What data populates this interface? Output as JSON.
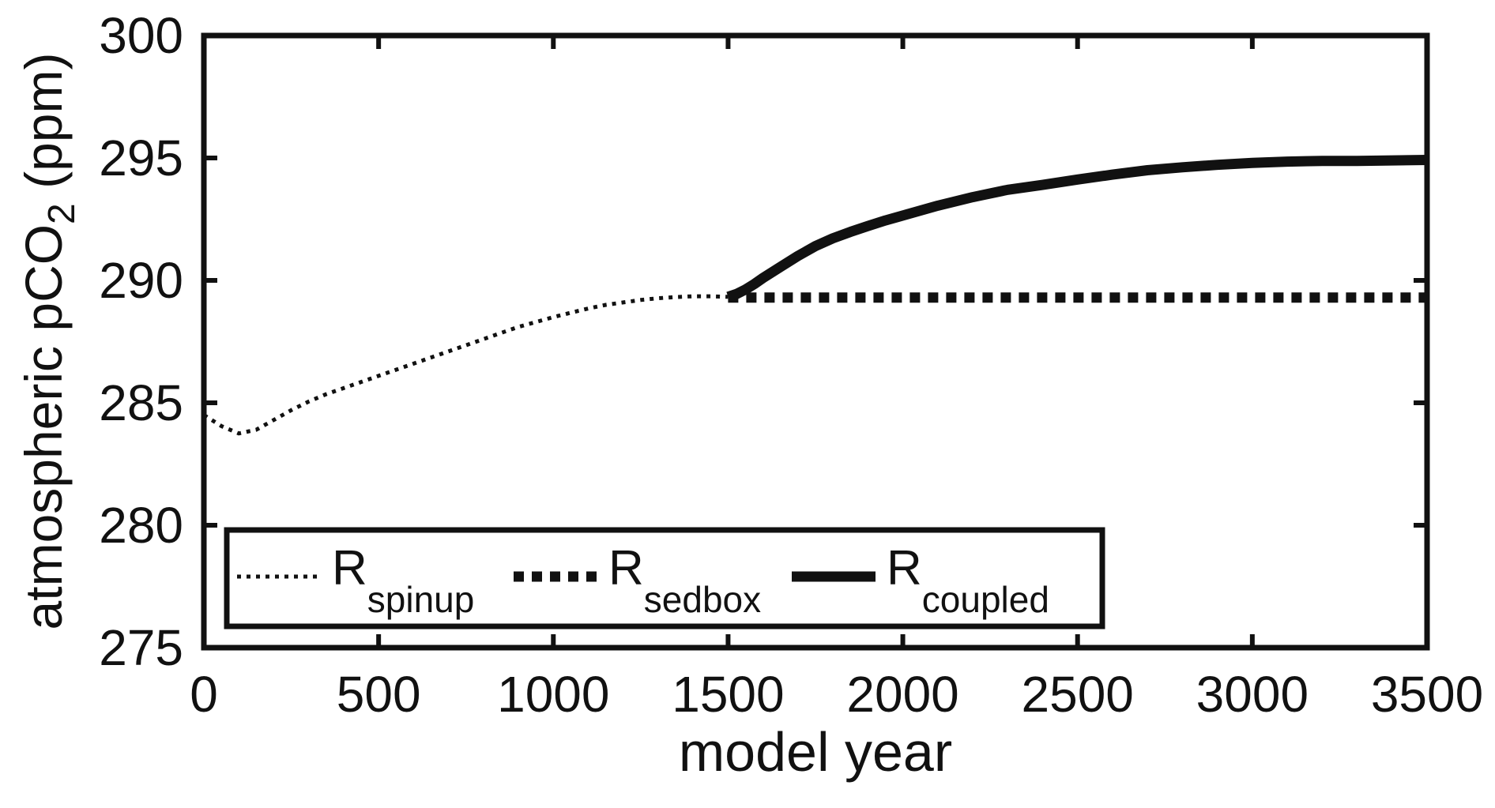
{
  "figure": {
    "background": "#ffffff",
    "ink_color": "#111111"
  },
  "chart_data": {
    "type": "line",
    "title": "",
    "xlabel": "model year",
    "ylabel_parts": [
      {
        "t": "atmospheric pCO"
      },
      {
        "t": "2"
      },
      {
        "t": " (ppm)"
      }
    ],
    "xlim": [
      0,
      3500
    ],
    "ylim": [
      275,
      300
    ],
    "xticks": [
      0,
      500,
      1000,
      1500,
      2000,
      2500,
      3000,
      3500
    ],
    "yticks": [
      275,
      280,
      285,
      290,
      295,
      300
    ],
    "grid": false,
    "box": true,
    "legend_position": "south-west-inside",
    "series": [
      {
        "name": "R_spinup",
        "label_base": "R",
        "label_sub": "spinup",
        "style": "dotted-thin",
        "color": "#111111",
        "x": [
          0,
          50,
          100,
          150,
          200,
          250,
          300,
          350,
          400,
          450,
          500,
          550,
          600,
          650,
          700,
          750,
          800,
          850,
          900,
          950,
          1000,
          1050,
          1100,
          1150,
          1200,
          1250,
          1300,
          1350,
          1400,
          1450,
          1500
        ],
        "y": [
          284.5,
          284.05,
          283.75,
          283.9,
          284.3,
          284.7,
          285.05,
          285.35,
          285.6,
          285.85,
          286.1,
          286.35,
          286.6,
          286.85,
          287.1,
          287.35,
          287.6,
          287.85,
          288.1,
          288.3,
          288.5,
          288.68,
          288.85,
          289.0,
          289.1,
          289.2,
          289.27,
          289.32,
          289.35,
          289.35,
          289.33
        ]
      },
      {
        "name": "R_sedbox",
        "label_base": "R",
        "label_sub": "sedbox",
        "style": "dotted-thick",
        "color": "#111111",
        "x": [
          1500,
          1750,
          2000,
          2250,
          2500,
          2750,
          3000,
          3250,
          3500
        ],
        "y": [
          289.3,
          289.3,
          289.3,
          289.3,
          289.3,
          289.3,
          289.3,
          289.3,
          289.3
        ]
      },
      {
        "name": "R_coupled",
        "label_base": "R",
        "label_sub": "coupled",
        "style": "solid-thick",
        "color": "#111111",
        "x": [
          1500,
          1525,
          1550,
          1575,
          1600,
          1650,
          1700,
          1750,
          1800,
          1850,
          1900,
          1950,
          2000,
          2100,
          2200,
          2300,
          2400,
          2500,
          2600,
          2700,
          2800,
          2900,
          3000,
          3100,
          3200,
          3300,
          3400,
          3500
        ],
        "y": [
          289.33,
          289.45,
          289.63,
          289.85,
          290.1,
          290.55,
          291.0,
          291.4,
          291.72,
          291.98,
          292.22,
          292.45,
          292.65,
          293.05,
          293.4,
          293.7,
          293.9,
          294.12,
          294.32,
          294.5,
          294.62,
          294.72,
          294.8,
          294.85,
          294.88,
          294.88,
          294.9,
          294.92
        ]
      }
    ]
  }
}
